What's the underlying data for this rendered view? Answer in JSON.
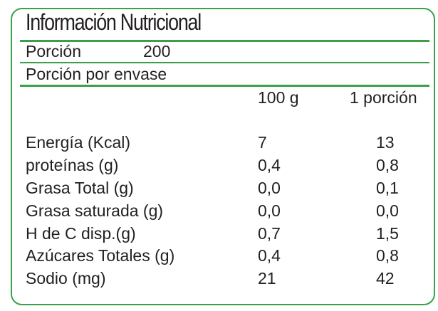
{
  "title": "Información Nutricional",
  "serving": {
    "label": "Porción",
    "value": "200"
  },
  "servings_per_container": {
    "label": "Porción por envase"
  },
  "columns": [
    "100 g",
    "1 porción"
  ],
  "rows": [
    {
      "label": "Energía (Kcal)",
      "per100": "7",
      "perServing": "13"
    },
    {
      "label": "proteínas (g)",
      "per100": "0,4",
      "perServing": "0,8"
    },
    {
      "label": "Grasa Total (g)",
      "per100": "0,0",
      "perServing": "0,1"
    },
    {
      "label": "Grasa saturada (g)",
      "per100": "0,0",
      "perServing": "0,0"
    },
    {
      "label": "H de C disp.(g)",
      "per100": "0,7",
      "perServing": "1,5"
    },
    {
      "label": "Azúcares Totales (g)",
      "per100": "0,4",
      "perServing": "0,8"
    },
    {
      "label": "Sodio (mg)",
      "per100": "21",
      "perServing": "42"
    }
  ],
  "colors": {
    "border": "#3aa14a",
    "text": "#231f20"
  }
}
